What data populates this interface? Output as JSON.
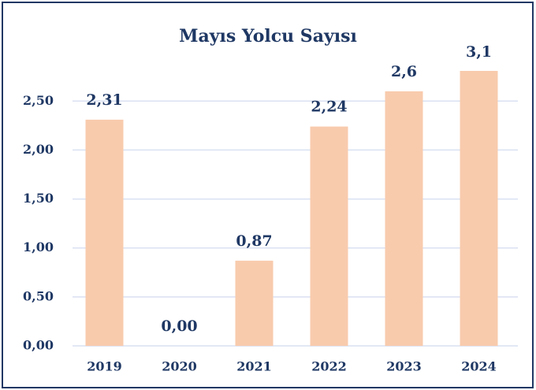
{
  "chart_data": {
    "type": "bar",
    "title": "Mayıs Yolcu Sayısı",
    "categories": [
      "2019",
      "2020",
      "2021",
      "2022",
      "2023",
      "2024"
    ],
    "values": [
      2.31,
      0,
      0.87,
      2.24,
      2.6,
      3.1
    ],
    "value_labels": [
      "2,31",
      "0,00",
      "0,87",
      "2,24",
      "2,6",
      "3,1"
    ],
    "color": "#f8cbad",
    "ylim": [
      0,
      2.8
    ],
    "yticks": [
      {
        "value": 0,
        "label": "0,00"
      },
      {
        "value": 0.5,
        "label": "0,50"
      },
      {
        "value": 1,
        "label": "1,00"
      },
      {
        "value": 1.5,
        "label": "1,50"
      },
      {
        "value": 2,
        "label": "2,00"
      },
      {
        "value": 2.5,
        "label": "2,50"
      }
    ],
    "grid": true
  }
}
